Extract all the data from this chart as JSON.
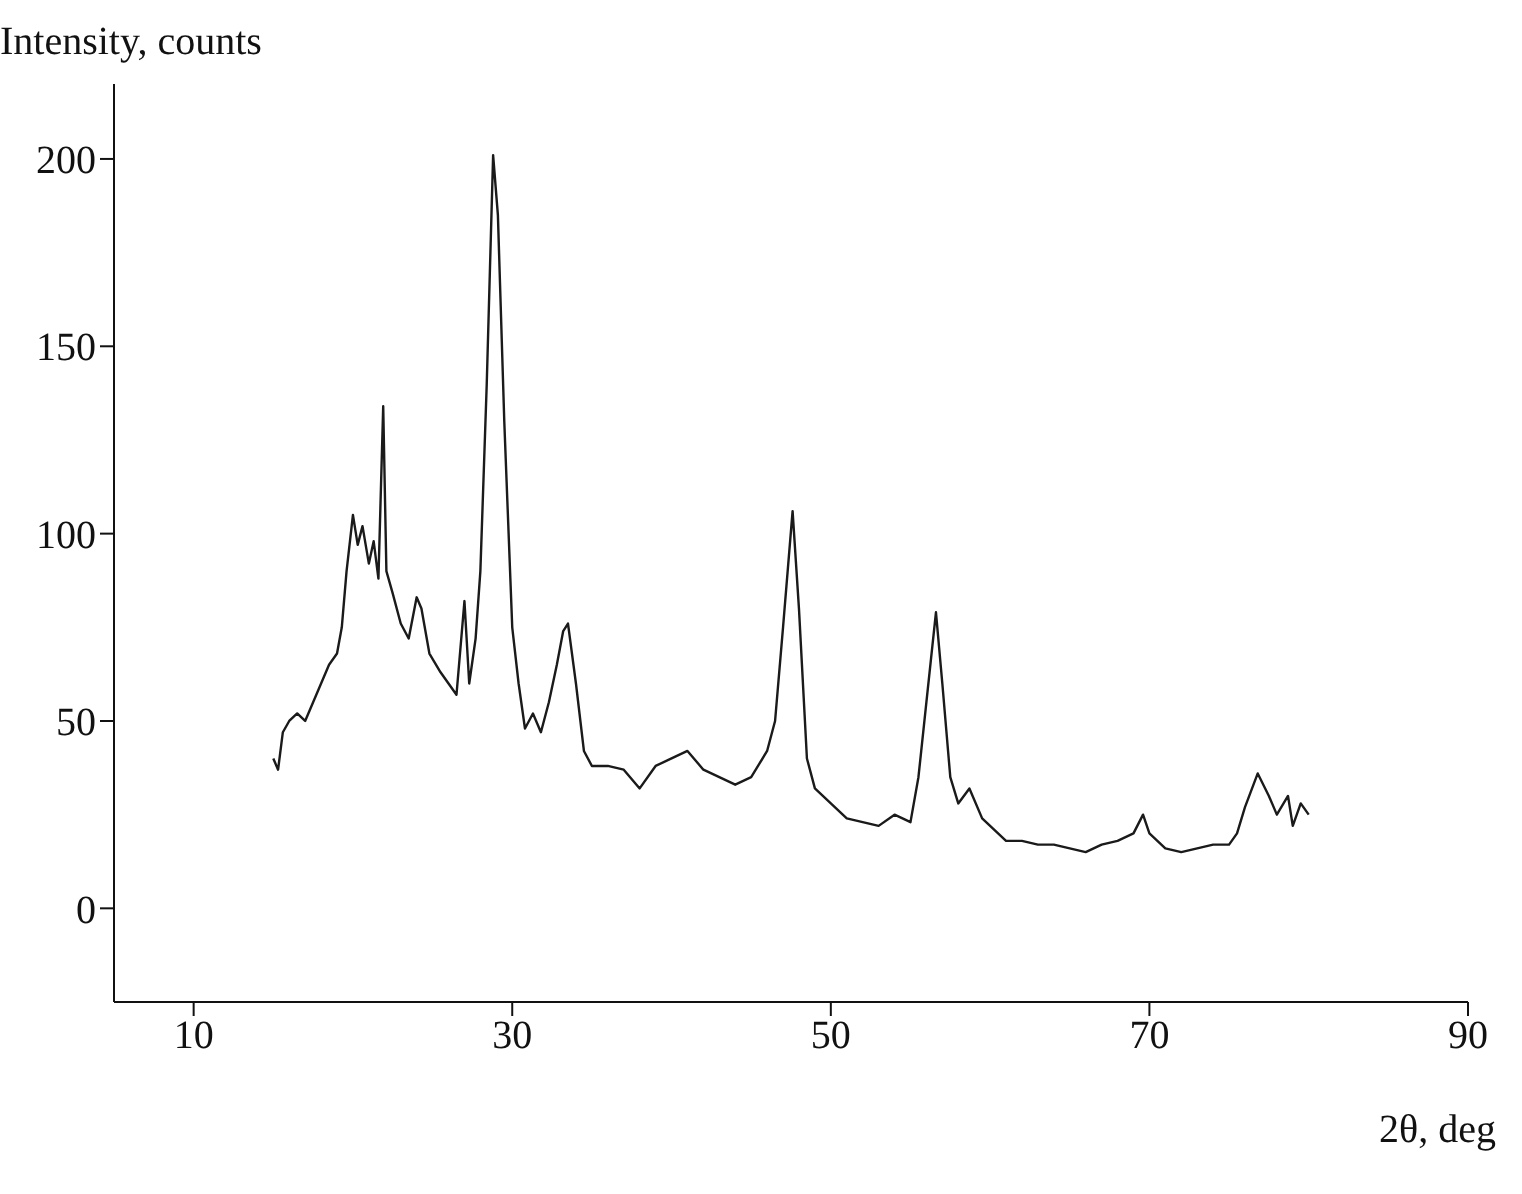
{
  "chart_data": {
    "type": "line",
    "xlabel": "2θ, deg",
    "ylabel": "Intensity, counts",
    "xlim": [
      5,
      90
    ],
    "ylim": [
      -25,
      220
    ],
    "xticks": [
      10,
      30,
      50,
      70,
      90
    ],
    "yticks": [
      0,
      50,
      100,
      150,
      200
    ],
    "grid": false,
    "legend": false,
    "marker": "none",
    "line_style": "solid",
    "series": [
      {
        "color": "#1a1a1a",
        "x": [
          15,
          15.3,
          15.6,
          16,
          16.5,
          17,
          17.5,
          18,
          18.5,
          19,
          19.3,
          19.6,
          20,
          20.3,
          20.6,
          21,
          21.3,
          21.6,
          21.9,
          22.1,
          22.5,
          23,
          23.5,
          24,
          24.3,
          24.8,
          25.5,
          26,
          26.5,
          27,
          27.3,
          27.7,
          28,
          28.4,
          28.8,
          29.1,
          29.5,
          30,
          30.4,
          30.8,
          31.3,
          31.8,
          32.3,
          32.8,
          33.2,
          33.5,
          34,
          34.5,
          35,
          36,
          37,
          38,
          39,
          40,
          41,
          42,
          43,
          44,
          45,
          46,
          46.5,
          47,
          47.6,
          48,
          48.5,
          49,
          50,
          51,
          52,
          53,
          54,
          55,
          55.5,
          56,
          56.6,
          57,
          57.5,
          58,
          58.7,
          59.5,
          60,
          61,
          62,
          63,
          64,
          65,
          66,
          67,
          68,
          69,
          69.6,
          70,
          71,
          72,
          73,
          74,
          75,
          75.5,
          76,
          76.8,
          77.5,
          78,
          78.7,
          79,
          79.5,
          80
        ],
        "values": [
          40,
          37,
          47,
          50,
          52,
          50,
          55,
          60,
          65,
          68,
          75,
          90,
          105,
          97,
          102,
          92,
          98,
          88,
          134,
          90,
          84,
          76,
          72,
          83,
          80,
          68,
          63,
          60,
          57,
          82,
          60,
          72,
          90,
          140,
          201,
          185,
          130,
          75,
          60,
          48,
          52,
          47,
          55,
          65,
          74,
          76,
          60,
          42,
          38,
          38,
          37,
          32,
          38,
          40,
          42,
          37,
          35,
          33,
          35,
          42,
          50,
          75,
          106,
          80,
          40,
          32,
          28,
          24,
          23,
          22,
          25,
          23,
          35,
          55,
          79,
          60,
          35,
          28,
          32,
          24,
          22,
          18,
          18,
          17,
          17,
          16,
          15,
          17,
          18,
          20,
          25,
          20,
          16,
          15,
          16,
          17,
          17,
          20,
          27,
          36,
          30,
          25,
          30,
          22,
          28,
          25
        ]
      }
    ]
  }
}
